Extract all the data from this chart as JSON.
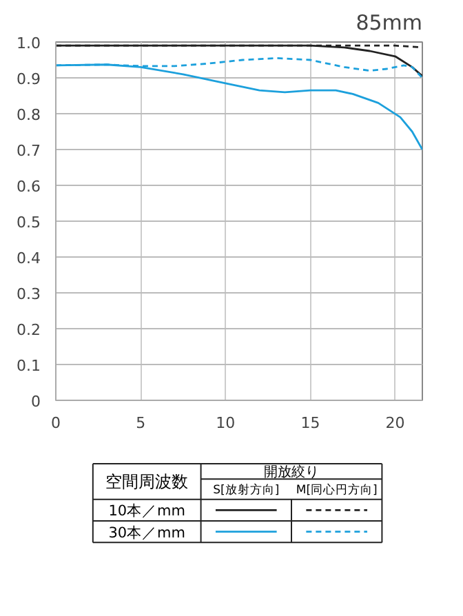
{
  "chart_data": {
    "type": "line",
    "title": "85mm",
    "xlim": [
      0,
      21.6
    ],
    "ylim": [
      0,
      1.0
    ],
    "xticks": [
      0,
      5,
      10,
      15,
      20
    ],
    "yticks": [
      0,
      0.1,
      0.2,
      0.3,
      0.4,
      0.5,
      0.6,
      0.7,
      0.8,
      0.9,
      {
        "value": 1.0,
        "label": "1.0"
      }
    ],
    "grid": true,
    "annotations": [
      "空間周波数",
      "開放絞り",
      "S[放射方向]",
      "M[同心円方向]",
      "10本／mm",
      "30本／mm"
    ],
    "series": [
      {
        "color": "#222222",
        "line_style": "solid",
        "x": [
          0,
          5,
          10,
          15,
          17,
          18.5,
          20,
          21,
          21.6
        ],
        "values": [
          0.99,
          0.99,
          0.99,
          0.99,
          0.985,
          0.975,
          0.96,
          0.93,
          0.905
        ]
      },
      {
        "color": "#222222",
        "line_style": "dashed",
        "x": [
          0,
          10,
          20,
          21.6
        ],
        "values": [
          0.99,
          0.99,
          0.99,
          0.985
        ]
      },
      {
        "color": "#1ca0dc",
        "line_style": "solid",
        "x": [
          0,
          3,
          5,
          7.5,
          10,
          12,
          13.5,
          15,
          16.5,
          17.5,
          19,
          20.3,
          21,
          21.6
        ],
        "values": [
          0.935,
          0.937,
          0.93,
          0.91,
          0.885,
          0.865,
          0.86,
          0.865,
          0.865,
          0.855,
          0.83,
          0.79,
          0.75,
          0.7
        ]
      },
      {
        "color": "#1ca0dc",
        "line_style": "dashed",
        "x": [
          0,
          3,
          5,
          7,
          9,
          11,
          13,
          15,
          17,
          18.5,
          19.5,
          20.5,
          21,
          21.6
        ],
        "values": [
          0.935,
          0.937,
          0.933,
          0.933,
          0.94,
          0.95,
          0.955,
          0.95,
          0.93,
          0.92,
          0.925,
          0.935,
          0.93,
          0.9
        ]
      }
    ]
  }
}
